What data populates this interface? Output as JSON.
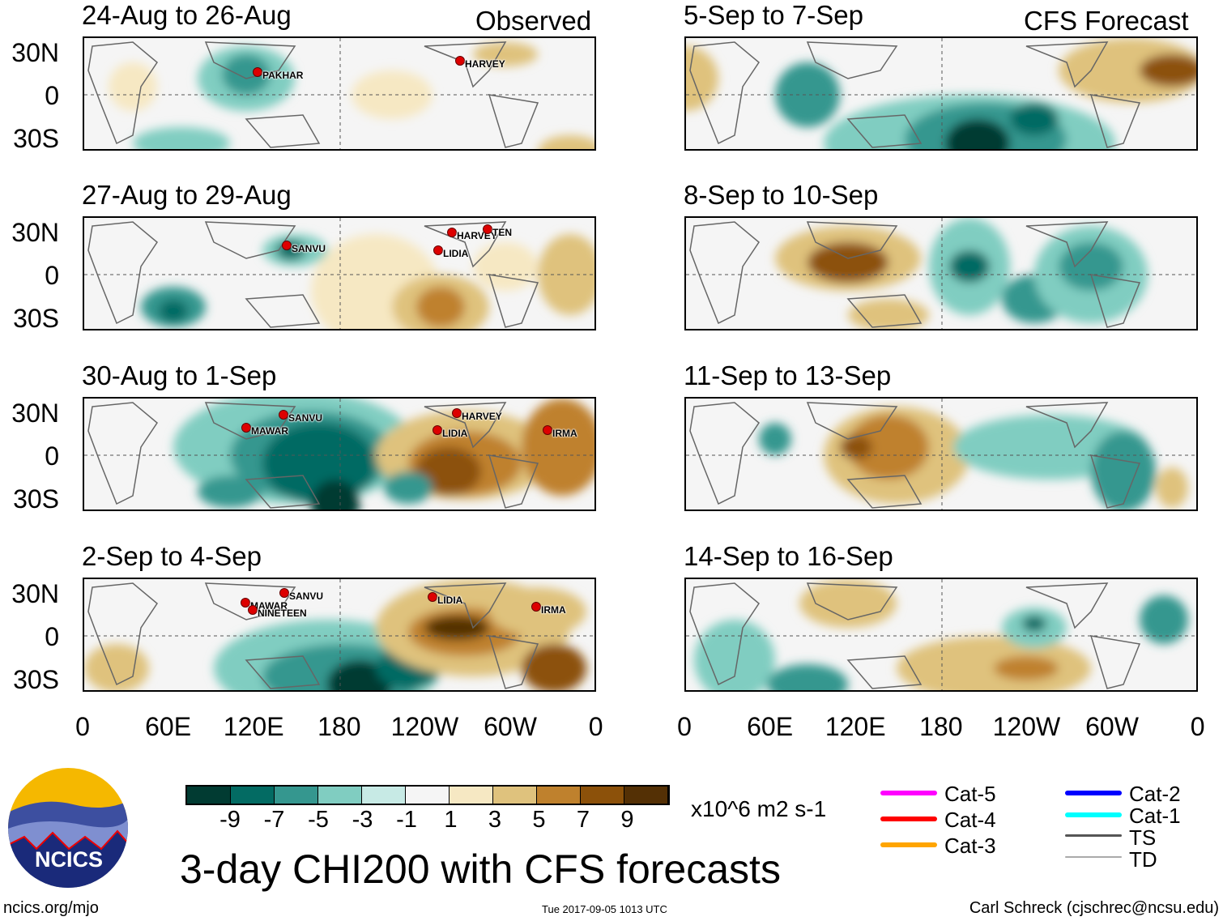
{
  "headers": {
    "observed": "Observed",
    "forecast": "CFS Forecast"
  },
  "panels_left": [
    "24-Aug to 26-Aug",
    "27-Aug to 29-Aug",
    "30-Aug to 1-Sep",
    "2-Sep to 4-Sep"
  ],
  "panels_right": [
    "5-Sep to 7-Sep",
    "8-Sep to 10-Sep",
    "11-Sep to 13-Sep",
    "14-Sep to 16-Sep"
  ],
  "lat_labels": [
    "30N",
    "0",
    "30S"
  ],
  "lon_labels": [
    "0",
    "60E",
    "120E",
    "180",
    "120W",
    "60W",
    "0"
  ],
  "storms": {
    "p0": [
      "PAKHAR",
      "HARVEY"
    ],
    "p1": [
      "SANVU",
      "HARVEY",
      "TEN",
      "LIDIA"
    ],
    "p2": [
      "SANVU",
      "MAWAR",
      "HARVEY",
      "LIDIA",
      "IRMA"
    ],
    "p3": [
      "SANVU",
      "MAWAR",
      "NINETEEN",
      "LIDIA",
      "IRMA"
    ]
  },
  "colorbar": {
    "colors": [
      "#013b32",
      "#036b63",
      "#35978f",
      "#80cdc1",
      "#c7eae5",
      "#f5f5f5",
      "#f6e8c3",
      "#dfc27d",
      "#bf812d",
      "#8c510a",
      "#543005"
    ],
    "labels": [
      "-9",
      "-7",
      "-5",
      "-3",
      "-1",
      "1",
      "3",
      "5",
      "7",
      "9"
    ],
    "units": "x10^6 m2 s-1"
  },
  "legend": [
    {
      "label": "Cat-5",
      "color": "#ff00ff"
    },
    {
      "label": "Cat-4",
      "color": "#ff0000"
    },
    {
      "label": "Cat-3",
      "color": "#ffa500"
    },
    {
      "label": "Cat-2",
      "color": "#0000ff"
    },
    {
      "label": "Cat-1",
      "color": "#00ffff"
    },
    {
      "label": "TS",
      "color": "#555555"
    },
    {
      "label": "TD",
      "color": "#aaaaaa"
    }
  ],
  "logo": "NCICS",
  "title": "3-day CHI200 with CFS forecasts",
  "footer": {
    "left": "ncics.org/mjo",
    "center": "Tue 2017-09-05 1013 UTC",
    "right": "Carl Schreck (cjschrec@ncsu.edu)"
  }
}
